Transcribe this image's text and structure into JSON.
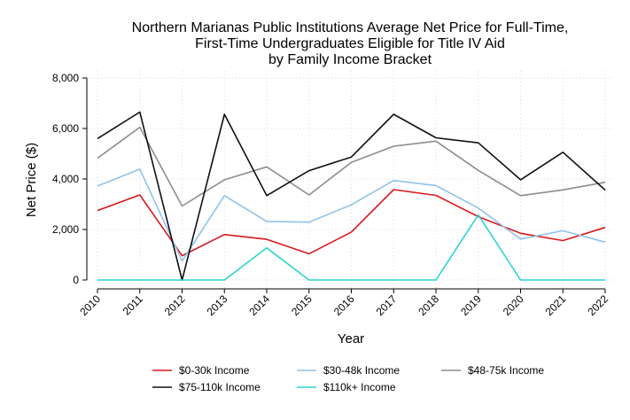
{
  "chart_data": {
    "type": "line",
    "title": [
      "Northern Marianas Public Institutions Average Net Price for Full-Time,",
      "First-Time Undergraduates Eligible for Title IV Aid",
      "by Family Income Bracket"
    ],
    "xlabel": "Year",
    "ylabel": "Net Price ($)",
    "x": [
      2010,
      2011,
      2012,
      2013,
      2014,
      2015,
      2016,
      2017,
      2018,
      2019,
      2020,
      2021,
      2022
    ],
    "x_tick_labels": [
      "2010",
      "2011",
      "2012",
      "2013",
      "2014",
      "2015",
      "2016",
      "2017",
      "2018",
      "2019",
      "2020",
      "2021",
      "2022"
    ],
    "ylim": [
      0,
      8000
    ],
    "y_ticks": [
      0,
      2000,
      4000,
      6000,
      8000
    ],
    "y_tick_labels": [
      "0",
      "2,000",
      "4,000",
      "6,000",
      "8,000"
    ],
    "grid": true,
    "legend_position": "bottom",
    "series": [
      {
        "name": "$0-30k Income",
        "color": "#d7191c",
        "values": [
          2750,
          3370,
          960,
          1800,
          1610,
          1040,
          1900,
          3580,
          3350,
          2510,
          1850,
          1560,
          2080
        ]
      },
      {
        "name": "$30-48k Income",
        "color": "#8fc3ea",
        "values": [
          3720,
          4390,
          750,
          3340,
          2320,
          2290,
          2980,
          3940,
          3740,
          2850,
          1620,
          1950,
          1500
        ]
      },
      {
        "name": "$48-75k Income",
        "color": "#8c8c8c",
        "values": [
          4820,
          6050,
          2930,
          3970,
          4480,
          3370,
          4660,
          5300,
          5500,
          4340,
          3340,
          3570,
          3870
        ]
      },
      {
        "name": "$75-110k Income",
        "color": "#111111",
        "values": [
          5600,
          6650,
          0,
          6560,
          3340,
          4330,
          4870,
          6560,
          5630,
          5430,
          3970,
          5060,
          3560
        ]
      },
      {
        "name": "$110k+ Income",
        "color": "#2bd3d3",
        "values": [
          0,
          0,
          0,
          0,
          1270,
          0,
          0,
          0,
          0,
          2580,
          0,
          0,
          0
        ]
      }
    ]
  }
}
